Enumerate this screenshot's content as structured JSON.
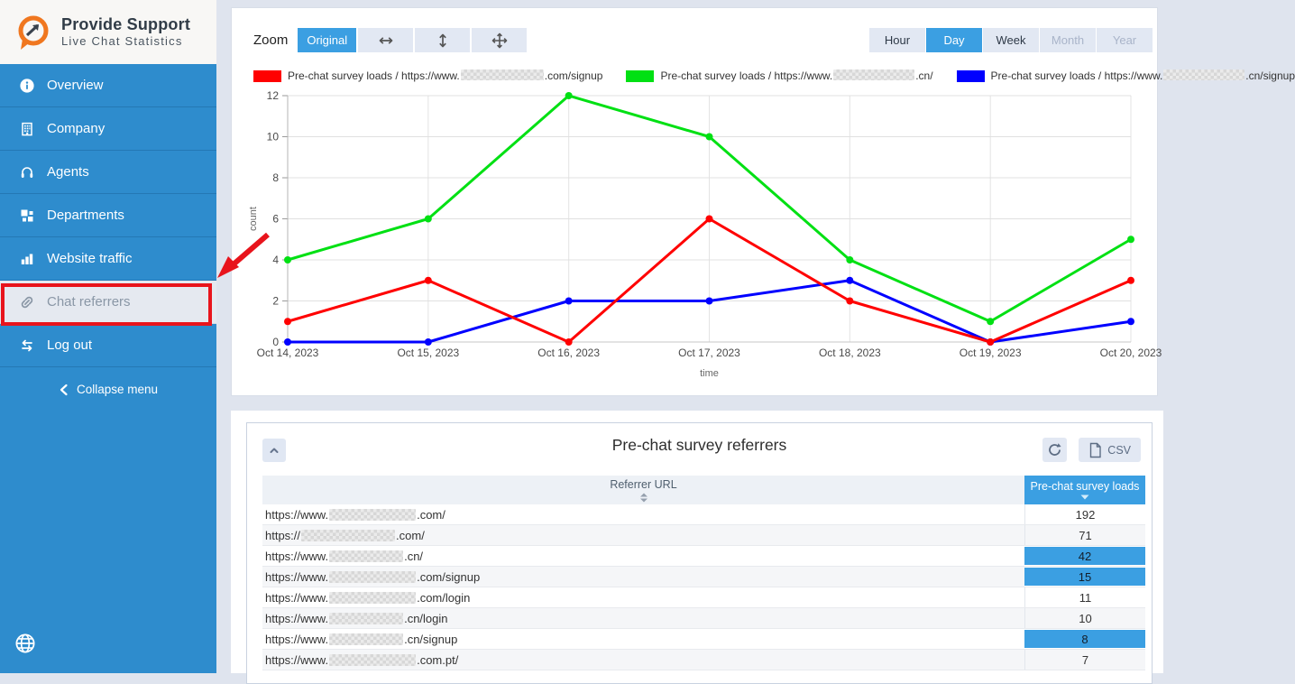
{
  "sidebar": {
    "logo_title": "Provide Support",
    "logo_subtitle": "Live Chat Statistics",
    "items": [
      {
        "label": "Overview",
        "icon": "info-icon",
        "active": false
      },
      {
        "label": "Company",
        "icon": "building-icon",
        "active": false
      },
      {
        "label": "Agents",
        "icon": "headset-icon",
        "active": false
      },
      {
        "label": "Departments",
        "icon": "departments-icon",
        "active": false
      },
      {
        "label": "Website traffic",
        "icon": "bar-chart-icon",
        "active": false
      },
      {
        "label": "Chat referrers",
        "icon": "link-icon",
        "active": true
      },
      {
        "label": "Log out",
        "icon": "logout-icon",
        "active": false
      }
    ],
    "collapse_label": "Collapse menu"
  },
  "toolbar": {
    "zoom_label": "Zoom",
    "zoom_original_label": "Original",
    "zoom_icon_buttons": [
      "zoom-horizontal-icon",
      "zoom-vertical-icon",
      "zoom-move-icon"
    ],
    "range_buttons": [
      {
        "label": "Hour",
        "state": "normal"
      },
      {
        "label": "Day",
        "state": "active"
      },
      {
        "label": "Week",
        "state": "normal"
      },
      {
        "label": "Month",
        "state": "disabled"
      },
      {
        "label": "Year",
        "state": "disabled"
      }
    ]
  },
  "chart_data": {
    "type": "line",
    "categories": [
      "Oct 14, 2023",
      "Oct 15, 2023",
      "Oct 16, 2023",
      "Oct 17, 2023",
      "Oct 18, 2023",
      "Oct 19, 2023",
      "Oct 20, 2023"
    ],
    "series": [
      {
        "name": "Pre-chat survey loads / https://www.[redacted].com/signup",
        "label_prefix": "Pre-chat survey loads / https://www.",
        "label_suffix": ".com/signup",
        "color": "#ff0000",
        "values": [
          1,
          3,
          0,
          6,
          2,
          0,
          3
        ],
        "label_blur_width": 92
      },
      {
        "name": "Pre-chat survey loads / https://www.[redacted].cn/",
        "label_prefix": "Pre-chat survey loads / https://www.",
        "label_suffix": ".cn/",
        "color": "#00e013",
        "values": [
          4,
          6,
          12,
          10,
          4,
          1,
          5
        ],
        "label_blur_width": 90
      },
      {
        "name": "Pre-chat survey loads / https://www.[redacted].cn/signup",
        "label_prefix": "Pre-chat survey loads / https://www.",
        "label_suffix": ".cn/signup",
        "color": "#0000ff",
        "values": [
          0,
          0,
          2,
          2,
          3,
          0,
          1
        ],
        "label_blur_width": 90
      }
    ],
    "xlabel": "time",
    "ylabel": "count",
    "ylim": [
      0,
      12
    ],
    "yticks": [
      0,
      2,
      4,
      6,
      8,
      10,
      12
    ],
    "grid": true,
    "legend_position": "top",
    "draw_order": [
      1,
      2,
      0
    ]
  },
  "table": {
    "title": "Pre-chat survey referrers",
    "csv_label": "CSV",
    "columns": [
      "Referrer URL",
      "Pre-chat survey loads"
    ],
    "sorted_column": "Pre-chat survey loads",
    "sort_direction": "desc",
    "rows": [
      {
        "url_prefix": "https://www.",
        "url_suffix": ".com/",
        "value": "192",
        "highlighted": false,
        "blur_width": 96
      },
      {
        "url_prefix": "https://",
        "url_suffix": ".com/",
        "value": "71",
        "highlighted": false,
        "blur_width": 104
      },
      {
        "url_prefix": "https://www.",
        "url_suffix": ".cn/",
        "value": "42",
        "highlighted": true,
        "blur_width": 82
      },
      {
        "url_prefix": "https://www.",
        "url_suffix": ".com/signup",
        "value": "15",
        "highlighted": true,
        "blur_width": 96
      },
      {
        "url_prefix": "https://www.",
        "url_suffix": ".com/login",
        "value": "11",
        "highlighted": false,
        "blur_width": 96
      },
      {
        "url_prefix": "https://www.",
        "url_suffix": ".cn/login",
        "value": "10",
        "highlighted": false,
        "blur_width": 82
      },
      {
        "url_prefix": "https://www.",
        "url_suffix": ".cn/signup",
        "value": "8",
        "highlighted": true,
        "blur_width": 82
      },
      {
        "url_prefix": "https://www.",
        "url_suffix": ".com.pt/",
        "value": "7",
        "highlighted": false,
        "blur_width": 96
      }
    ]
  },
  "colors": {
    "sidebar_blue": "#2e8ccd",
    "accent_blue": "#3b9fe2",
    "annotation_red": "#e8141c",
    "series_red": "#ff0000",
    "series_green": "#00e013",
    "series_blue": "#0000ff"
  },
  "icons": {
    "logo": "chat-bubble-trend-arrow",
    "sidebar": [
      "info-icon",
      "building-icon",
      "headset-icon",
      "departments-icon",
      "bar-chart-icon",
      "link-icon",
      "logout-icon",
      "collapse-chevron-icon",
      "globe-icon"
    ],
    "panel": [
      "collapse-up-icon",
      "refresh-icon",
      "csv-file-icon",
      "sort-icon",
      "sort-desc-icon"
    ]
  }
}
